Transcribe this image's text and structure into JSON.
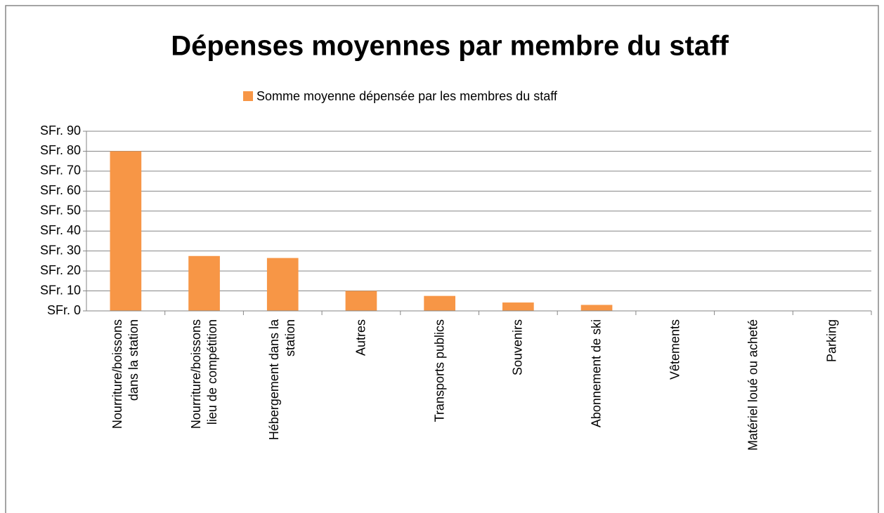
{
  "chart_data": {
    "type": "bar",
    "title": "Dépenses moyennes par membre du staff",
    "series": [
      {
        "name": "Somme moyenne dépensée par les membres du staff",
        "color": "#f79646",
        "values": [
          80,
          27.5,
          26.5,
          10,
          7.5,
          4.2,
          3,
          0,
          0,
          0
        ]
      }
    ],
    "categories": [
      "Nourriture/boissons\ndans la station",
      "Nourriture/boissons\nlieu de compétition",
      "Hébergement dans la\nstation",
      "Autres",
      "Transports publics",
      "Souvenirs",
      "Abonnement de ski",
      "Vêtements",
      "Matériel loué ou acheté",
      "Parking"
    ],
    "ylim": [
      0,
      90
    ],
    "yticks": [
      {
        "value": 0,
        "label": "SFr. 0"
      },
      {
        "value": 10,
        "label": "SFr. 10"
      },
      {
        "value": 20,
        "label": "SFr. 20"
      },
      {
        "value": 30,
        "label": "SFr. 30"
      },
      {
        "value": 40,
        "label": "SFr. 40"
      },
      {
        "value": 50,
        "label": "SFr. 50"
      },
      {
        "value": 60,
        "label": "SFr. 60"
      },
      {
        "value": 70,
        "label": "SFr. 70"
      },
      {
        "value": 80,
        "label": "SFr. 80"
      },
      {
        "value": 90,
        "label": "SFr. 90"
      }
    ],
    "grid": true,
    "legend": "top"
  }
}
